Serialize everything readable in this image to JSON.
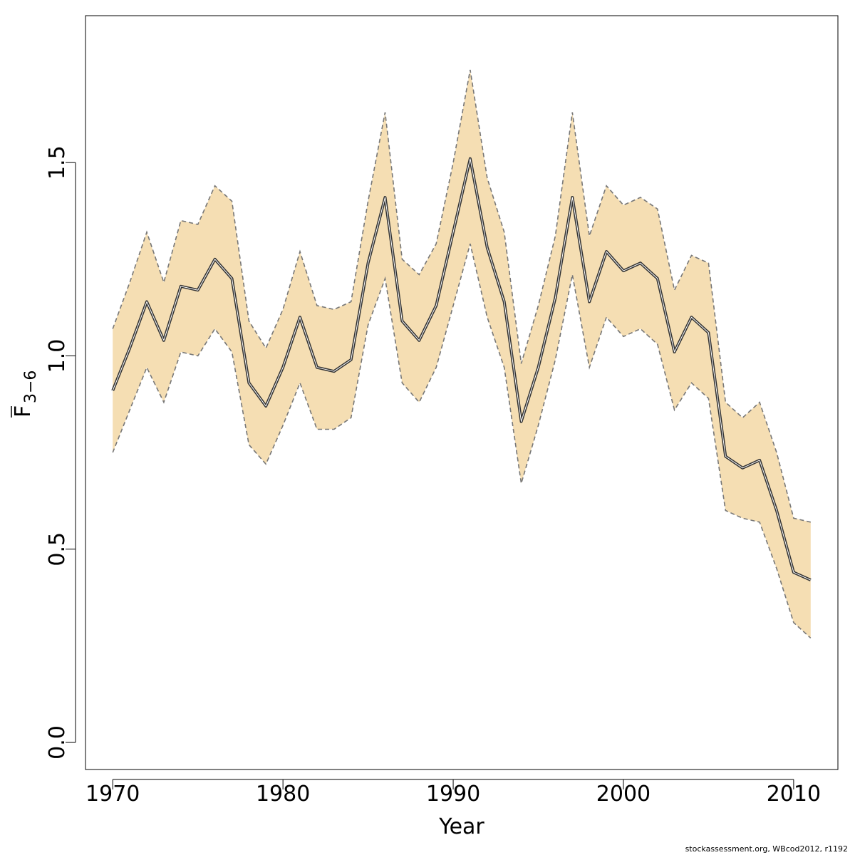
{
  "colors": {
    "band_fill": "#f5deb3",
    "band_edge": "#777777",
    "estimate_line": "#333333",
    "estimate_line_inner": "#ffffff",
    "axis": "#000000"
  },
  "footer": "stockassessment.org, WBcod2012, r1192",
  "chart_data": {
    "type": "line",
    "xlabel": "Year",
    "ylabel_main": "F",
    "ylabel_sub": "3−6",
    "ylabel_overbar": true,
    "xlim": [
      1968.4,
      2012.6
    ],
    "ylim": [
      -0.07,
      1.88
    ],
    "x_ticks": [
      1970,
      1980,
      1990,
      2000,
      2010
    ],
    "y_ticks": [
      0.0,
      0.5,
      1.0,
      1.5
    ],
    "y_tick_labels": [
      "0.0",
      "0.5",
      "1.0",
      "1.5"
    ],
    "x_tick_labels": [
      "1970",
      "1980",
      "1990",
      "2000",
      "2010"
    ],
    "grid": false,
    "legend": "none",
    "x": [
      1970,
      1971,
      1972,
      1973,
      1974,
      1975,
      1976,
      1977,
      1978,
      1979,
      1980,
      1981,
      1982,
      1983,
      1984,
      1985,
      1986,
      1987,
      1988,
      1989,
      1990,
      1991,
      1992,
      1993,
      1994,
      1995,
      1996,
      1997,
      1998,
      1999,
      2000,
      2001,
      2002,
      2003,
      2004,
      2005,
      2006,
      2007,
      2008,
      2009,
      2010,
      2011
    ],
    "series": [
      {
        "role": "estimate",
        "values": [
          0.91,
          1.02,
          1.14,
          1.04,
          1.18,
          1.17,
          1.25,
          1.2,
          0.93,
          0.87,
          0.97,
          1.1,
          0.97,
          0.96,
          0.99,
          1.24,
          1.41,
          1.09,
          1.04,
          1.13,
          1.32,
          1.51,
          1.28,
          1.14,
          0.83,
          0.97,
          1.15,
          1.41,
          1.14,
          1.27,
          1.22,
          1.24,
          1.2,
          1.01,
          1.1,
          1.06,
          0.74,
          0.71,
          0.73,
          0.6,
          0.44,
          0.42
        ]
      },
      {
        "role": "upper",
        "values": [
          1.07,
          1.19,
          1.32,
          1.19,
          1.35,
          1.34,
          1.44,
          1.4,
          1.09,
          1.02,
          1.12,
          1.27,
          1.13,
          1.12,
          1.14,
          1.4,
          1.63,
          1.25,
          1.21,
          1.29,
          1.5,
          1.74,
          1.46,
          1.32,
          0.98,
          1.13,
          1.31,
          1.63,
          1.31,
          1.44,
          1.39,
          1.41,
          1.38,
          1.17,
          1.26,
          1.24,
          0.88,
          0.84,
          0.88,
          0.75,
          0.58,
          0.57
        ]
      },
      {
        "role": "lower",
        "values": [
          0.75,
          0.86,
          0.97,
          0.88,
          1.01,
          1.0,
          1.07,
          1.01,
          0.77,
          0.72,
          0.82,
          0.93,
          0.81,
          0.81,
          0.84,
          1.08,
          1.2,
          0.93,
          0.88,
          0.97,
          1.13,
          1.29,
          1.1,
          0.97,
          0.67,
          0.82,
          0.99,
          1.21,
          0.97,
          1.1,
          1.05,
          1.07,
          1.03,
          0.86,
          0.93,
          0.89,
          0.6,
          0.58,
          0.57,
          0.45,
          0.31,
          0.27
        ]
      }
    ]
  }
}
